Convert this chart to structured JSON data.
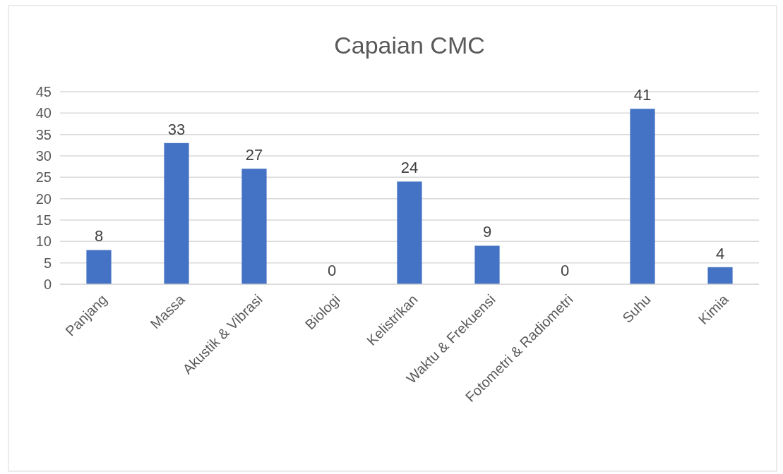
{
  "chart_data": {
    "type": "bar",
    "title": "Capaian CMC",
    "categories": [
      "Panjang",
      "Massa",
      "Akustik & Vibrasi",
      "Biologi",
      "Kelistrikan",
      "Waktu & Frekuensi",
      "Fotometri & Radiometri",
      "Suhu",
      "Kimia"
    ],
    "values": [
      8,
      33,
      27,
      0,
      24,
      9,
      0,
      41,
      4
    ],
    "color": "#4472c4",
    "ylim": [
      0,
      45
    ],
    "yticks": [
      0,
      5,
      10,
      15,
      20,
      25,
      30,
      35,
      40,
      45
    ],
    "grid": "y",
    "data_labels": true
  }
}
